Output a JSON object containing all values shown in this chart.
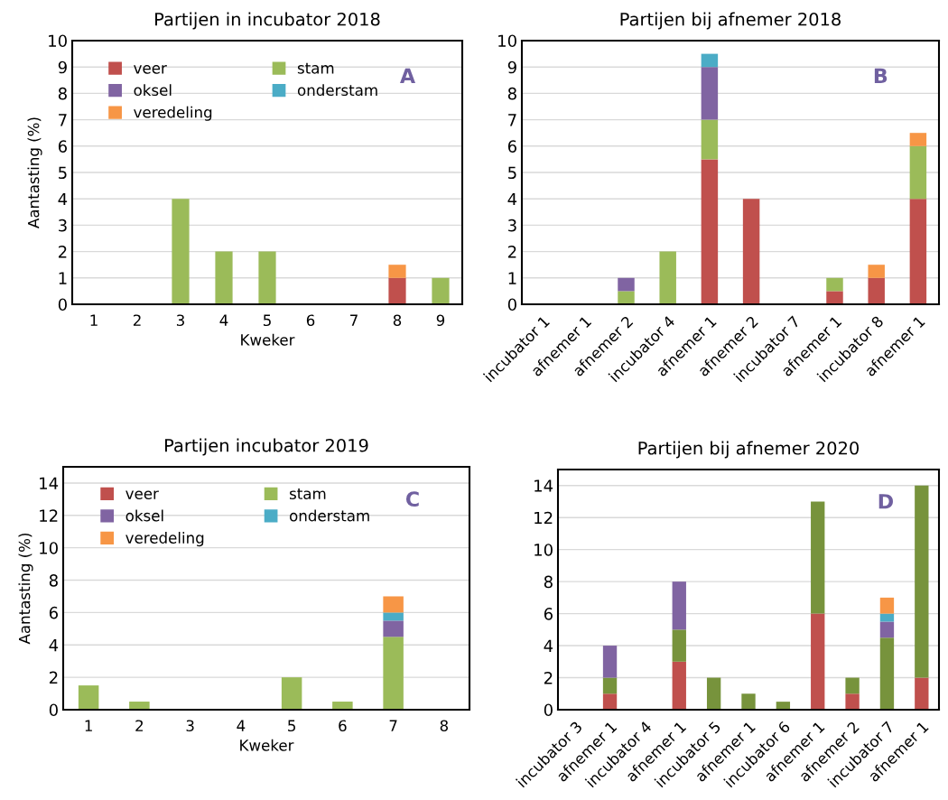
{
  "chart_data": [
    {
      "type": "bar",
      "stacked": true,
      "title": "Partijen in incubator 2018",
      "xlabel": "Kweker",
      "ylabel": "Aantasting (%)",
      "annotations": [
        "A"
      ],
      "categories": [
        "1",
        "2",
        "3",
        "4",
        "5",
        "6",
        "7",
        "8",
        "9"
      ],
      "ylim": [
        0,
        10
      ],
      "yticks": [
        0,
        1,
        2,
        3,
        4,
        5,
        6,
        7,
        8,
        9,
        10
      ],
      "grid": "y",
      "legend": "top left",
      "series": [
        {
          "name": "veer",
          "color": "#c0504d",
          "values": [
            0,
            0,
            0,
            0,
            0,
            0,
            0,
            1,
            0
          ]
        },
        {
          "name": "stam",
          "color": "#9bbb59",
          "values": [
            0,
            0,
            4,
            2,
            2,
            0,
            0,
            0,
            1
          ]
        },
        {
          "name": "oksel",
          "color": "#8064a2",
          "values": [
            0,
            0,
            0,
            0,
            0,
            0,
            0,
            0,
            0
          ]
        },
        {
          "name": "onderstam",
          "color": "#4bacc6",
          "values": [
            0,
            0,
            0,
            0,
            0,
            0,
            0,
            0,
            0
          ]
        },
        {
          "name": "veredeling",
          "color": "#f79646",
          "values": [
            0,
            0,
            0,
            0,
            0,
            0,
            0,
            0.5,
            0
          ]
        }
      ]
    },
    {
      "type": "bar",
      "stacked": true,
      "title": "Partijen bij afnemer 2018",
      "annotations": [
        "B"
      ],
      "categories": [
        "incubator 1",
        "afnemer 1",
        "afnemer 2",
        "incubator 4",
        "afnemer 1",
        "afnemer 2",
        "incubator 7",
        "afnemer 1",
        "incubator 8",
        "afnemer 1"
      ],
      "ylim": [
        0,
        10
      ],
      "yticks": [
        0,
        1,
        2,
        3,
        4,
        5,
        6,
        7,
        8,
        9,
        10
      ],
      "grid": "y",
      "series": [
        {
          "color": "#c0504d",
          "values": [
            0,
            0,
            0,
            0,
            5.5,
            4,
            0,
            0.5,
            1,
            4
          ]
        },
        {
          "color": "#9bbb59",
          "values": [
            0,
            0,
            0.5,
            2,
            1.5,
            0,
            0,
            0.5,
            0,
            2
          ]
        },
        {
          "color": "#8064a2",
          "values": [
            0,
            0,
            0.5,
            0,
            2,
            0,
            0,
            0,
            0,
            0
          ]
        },
        {
          "color": "#4bacc6",
          "values": [
            0,
            0,
            0,
            0,
            0.5,
            0,
            0,
            0,
            0,
            0
          ]
        },
        {
          "color": "#f79646",
          "values": [
            0,
            0,
            0,
            0,
            0,
            0,
            0,
            0,
            0.5,
            0.5
          ]
        }
      ]
    },
    {
      "type": "bar",
      "stacked": true,
      "title": "Partijen incubator 2019",
      "xlabel": "Kweker",
      "ylabel": "Aantasting (%)",
      "annotations": [
        "C"
      ],
      "categories": [
        "1",
        "2",
        "3",
        "4",
        "5",
        "6",
        "7",
        "8"
      ],
      "ylim": [
        0,
        15
      ],
      "yticks": [
        0,
        2,
        4,
        6,
        8,
        10,
        12,
        14
      ],
      "grid": "y",
      "legend": "top left",
      "series": [
        {
          "name": "veer",
          "color": "#c0504d",
          "values": [
            0,
            0,
            0,
            0,
            0,
            0,
            0,
            0
          ]
        },
        {
          "name": "stam",
          "color": "#9bbb59",
          "values": [
            1.5,
            0.5,
            0,
            0,
            2,
            0.5,
            4.5,
            0
          ]
        },
        {
          "name": "oksel",
          "color": "#8064a2",
          "values": [
            0,
            0,
            0,
            0,
            0,
            0,
            1,
            0
          ]
        },
        {
          "name": "onderstam",
          "color": "#4bacc6",
          "values": [
            0,
            0,
            0,
            0,
            0,
            0,
            0.5,
            0
          ]
        },
        {
          "name": "veredeling",
          "color": "#f79646",
          "values": [
            0,
            0,
            0,
            0,
            0,
            0,
            1,
            0
          ]
        }
      ]
    },
    {
      "type": "bar",
      "stacked": true,
      "title": "Partijen bij afnemer 2020",
      "annotations": [
        "D"
      ],
      "categories": [
        "incubator 3",
        "afnemer 1",
        "incubator 4",
        "afnemer 1",
        "incubator 5",
        "afnemer 1",
        "incubator 6",
        "afnemer 1",
        "afnemer 2",
        "incubator 7",
        "afnemer 1"
      ],
      "ylim": [
        0,
        15
      ],
      "yticks": [
        0,
        2,
        4,
        6,
        8,
        10,
        12,
        14
      ],
      "grid": "y",
      "series": [
        {
          "color": "#c0504d",
          "values": [
            0,
            1,
            0,
            3,
            0,
            0,
            0,
            6,
            1,
            0,
            2
          ]
        },
        {
          "color": "#77933c",
          "values": [
            0,
            1,
            0,
            2,
            2,
            1,
            0.5,
            7,
            1,
            4.5,
            12
          ]
        },
        {
          "color": "#8064a2",
          "values": [
            0,
            2,
            0,
            3,
            0,
            0,
            0,
            0,
            0,
            1,
            0
          ]
        },
        {
          "color": "#4bacc6",
          "values": [
            0,
            0,
            0,
            0,
            0,
            0,
            0,
            0,
            0,
            0.5,
            0
          ]
        },
        {
          "color": "#f79646",
          "values": [
            0,
            0,
            0,
            0,
            0,
            0,
            0,
            0,
            0,
            1,
            0
          ]
        }
      ]
    }
  ]
}
